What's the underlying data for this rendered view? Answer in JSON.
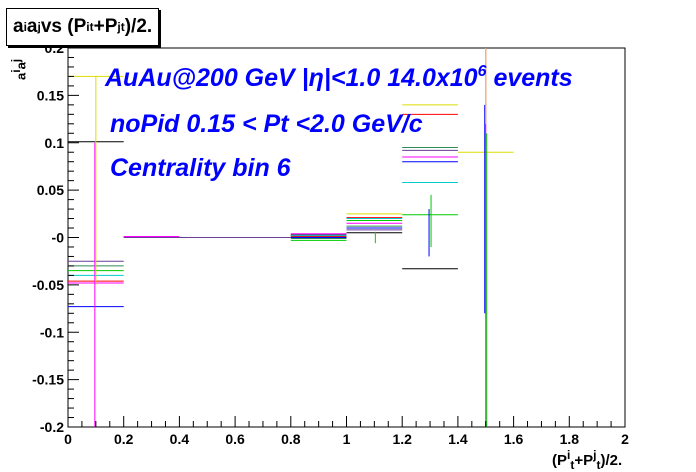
{
  "title": {
    "a": "a",
    "i": "i",
    "j": "j",
    "vs": " vs (P",
    "t": "t",
    "plus": "+P",
    "end": ")/2."
  },
  "ylabel": {
    "a": "a",
    "i": "i",
    "j": "j"
  },
  "xlabel": {
    "open": "(P",
    "i": "i",
    "j": "j",
    "t": "t",
    "plus": "+P",
    "end": ")/2."
  },
  "legend_lines": [
    "AuAu@200 GeV |η|<1.0 14.0x10",
    "6",
    " events",
    "noPid 0.15 < Pt <2.0 GeV/c",
    "Centrality bin 6"
  ],
  "chart_data": {
    "type": "step",
    "xlim": [
      0,
      2
    ],
    "ylim": [
      -0.2,
      0.2
    ],
    "x_ticks": [
      "0",
      "0.2",
      "0.4",
      "0.6",
      "0.8",
      "1",
      "1.2",
      "1.4",
      "1.6",
      "1.8",
      "2"
    ],
    "y_ticks": [
      "-0.2",
      "-0.15",
      "-0.1",
      "-0.05",
      "-0",
      "0.05",
      "0.1",
      "0.15",
      "0.2"
    ],
    "bin_edges": [
      0,
      0.2,
      0.4,
      0.6,
      0.8,
      1.0,
      1.2,
      1.4,
      1.6,
      1.8,
      2.0
    ],
    "series": [
      {
        "color": "#000000",
        "values": [
          0.101,
          0.0,
          0.0,
          0.0,
          0.002,
          0.005,
          -0.033,
          null,
          null,
          null
        ]
      },
      {
        "color": "#ff0000",
        "values": [
          -0.046,
          0.0,
          0.0,
          0.0,
          0.001,
          0.021,
          0.13,
          null,
          null,
          null
        ]
      },
      {
        "color": "#00cc00",
        "values": [
          -0.035,
          0.0,
          0.0,
          0.0,
          -0.003,
          0.018,
          0.024,
          null,
          null,
          null
        ]
      },
      {
        "color": "#0000ff",
        "values": [
          -0.073,
          0.0,
          0.0,
          0.0,
          0.0,
          0.01,
          0.08,
          null,
          null,
          null
        ]
      },
      {
        "color": "#dddd00",
        "values": [
          0.17,
          0.0,
          0.0,
          0.0,
          0.003,
          0.025,
          0.14,
          0.09,
          null,
          null
        ]
      },
      {
        "color": "#ff00ff",
        "values": [
          -0.048,
          0.001,
          0.0,
          0.0,
          0.004,
          0.015,
          0.085,
          null,
          null,
          null
        ]
      },
      {
        "color": "#00cccc",
        "values": [
          -0.04,
          0.0,
          0.0,
          0.0,
          0.002,
          0.02,
          0.058,
          null,
          null,
          null
        ]
      },
      {
        "color": "#2e8b57",
        "values": [
          -0.03,
          0.0,
          0.0,
          0.0,
          -0.001,
          0.012,
          0.095,
          null,
          null,
          null
        ]
      },
      {
        "color": "#6a3d9a",
        "values": [
          -0.025,
          0.0,
          0.0,
          0.0,
          0.003,
          0.008,
          0.092,
          null,
          null,
          null
        ]
      }
    ],
    "error_bars": [
      {
        "color": "#ff00ff",
        "x": 0.1,
        "low": -0.2,
        "high": 0.1
      },
      {
        "color": "#dddd00",
        "x": 0.1,
        "low": -0.05,
        "high": 0.17
      },
      {
        "color": "#00cc00",
        "x": 1.3,
        "low": -0.01,
        "high": 0.045
      },
      {
        "color": "#0000ff",
        "x": 1.3,
        "low": -0.02,
        "high": 0.03
      },
      {
        "color": "#ff00ff",
        "x": 1.5,
        "low": -0.2,
        "high": 0.2
      },
      {
        "color": "#00cc00",
        "x": 1.5,
        "low": -0.2,
        "high": 0.11
      },
      {
        "color": "#0000ff",
        "x": 1.5,
        "low": -0.08,
        "high": 0.14
      },
      {
        "color": "#dddd00",
        "x": 1.5,
        "low": 0.12,
        "high": 0.2
      },
      {
        "color": "#00cc00",
        "x": 1.1,
        "low": -0.006,
        "high": 0.006
      }
    ]
  }
}
